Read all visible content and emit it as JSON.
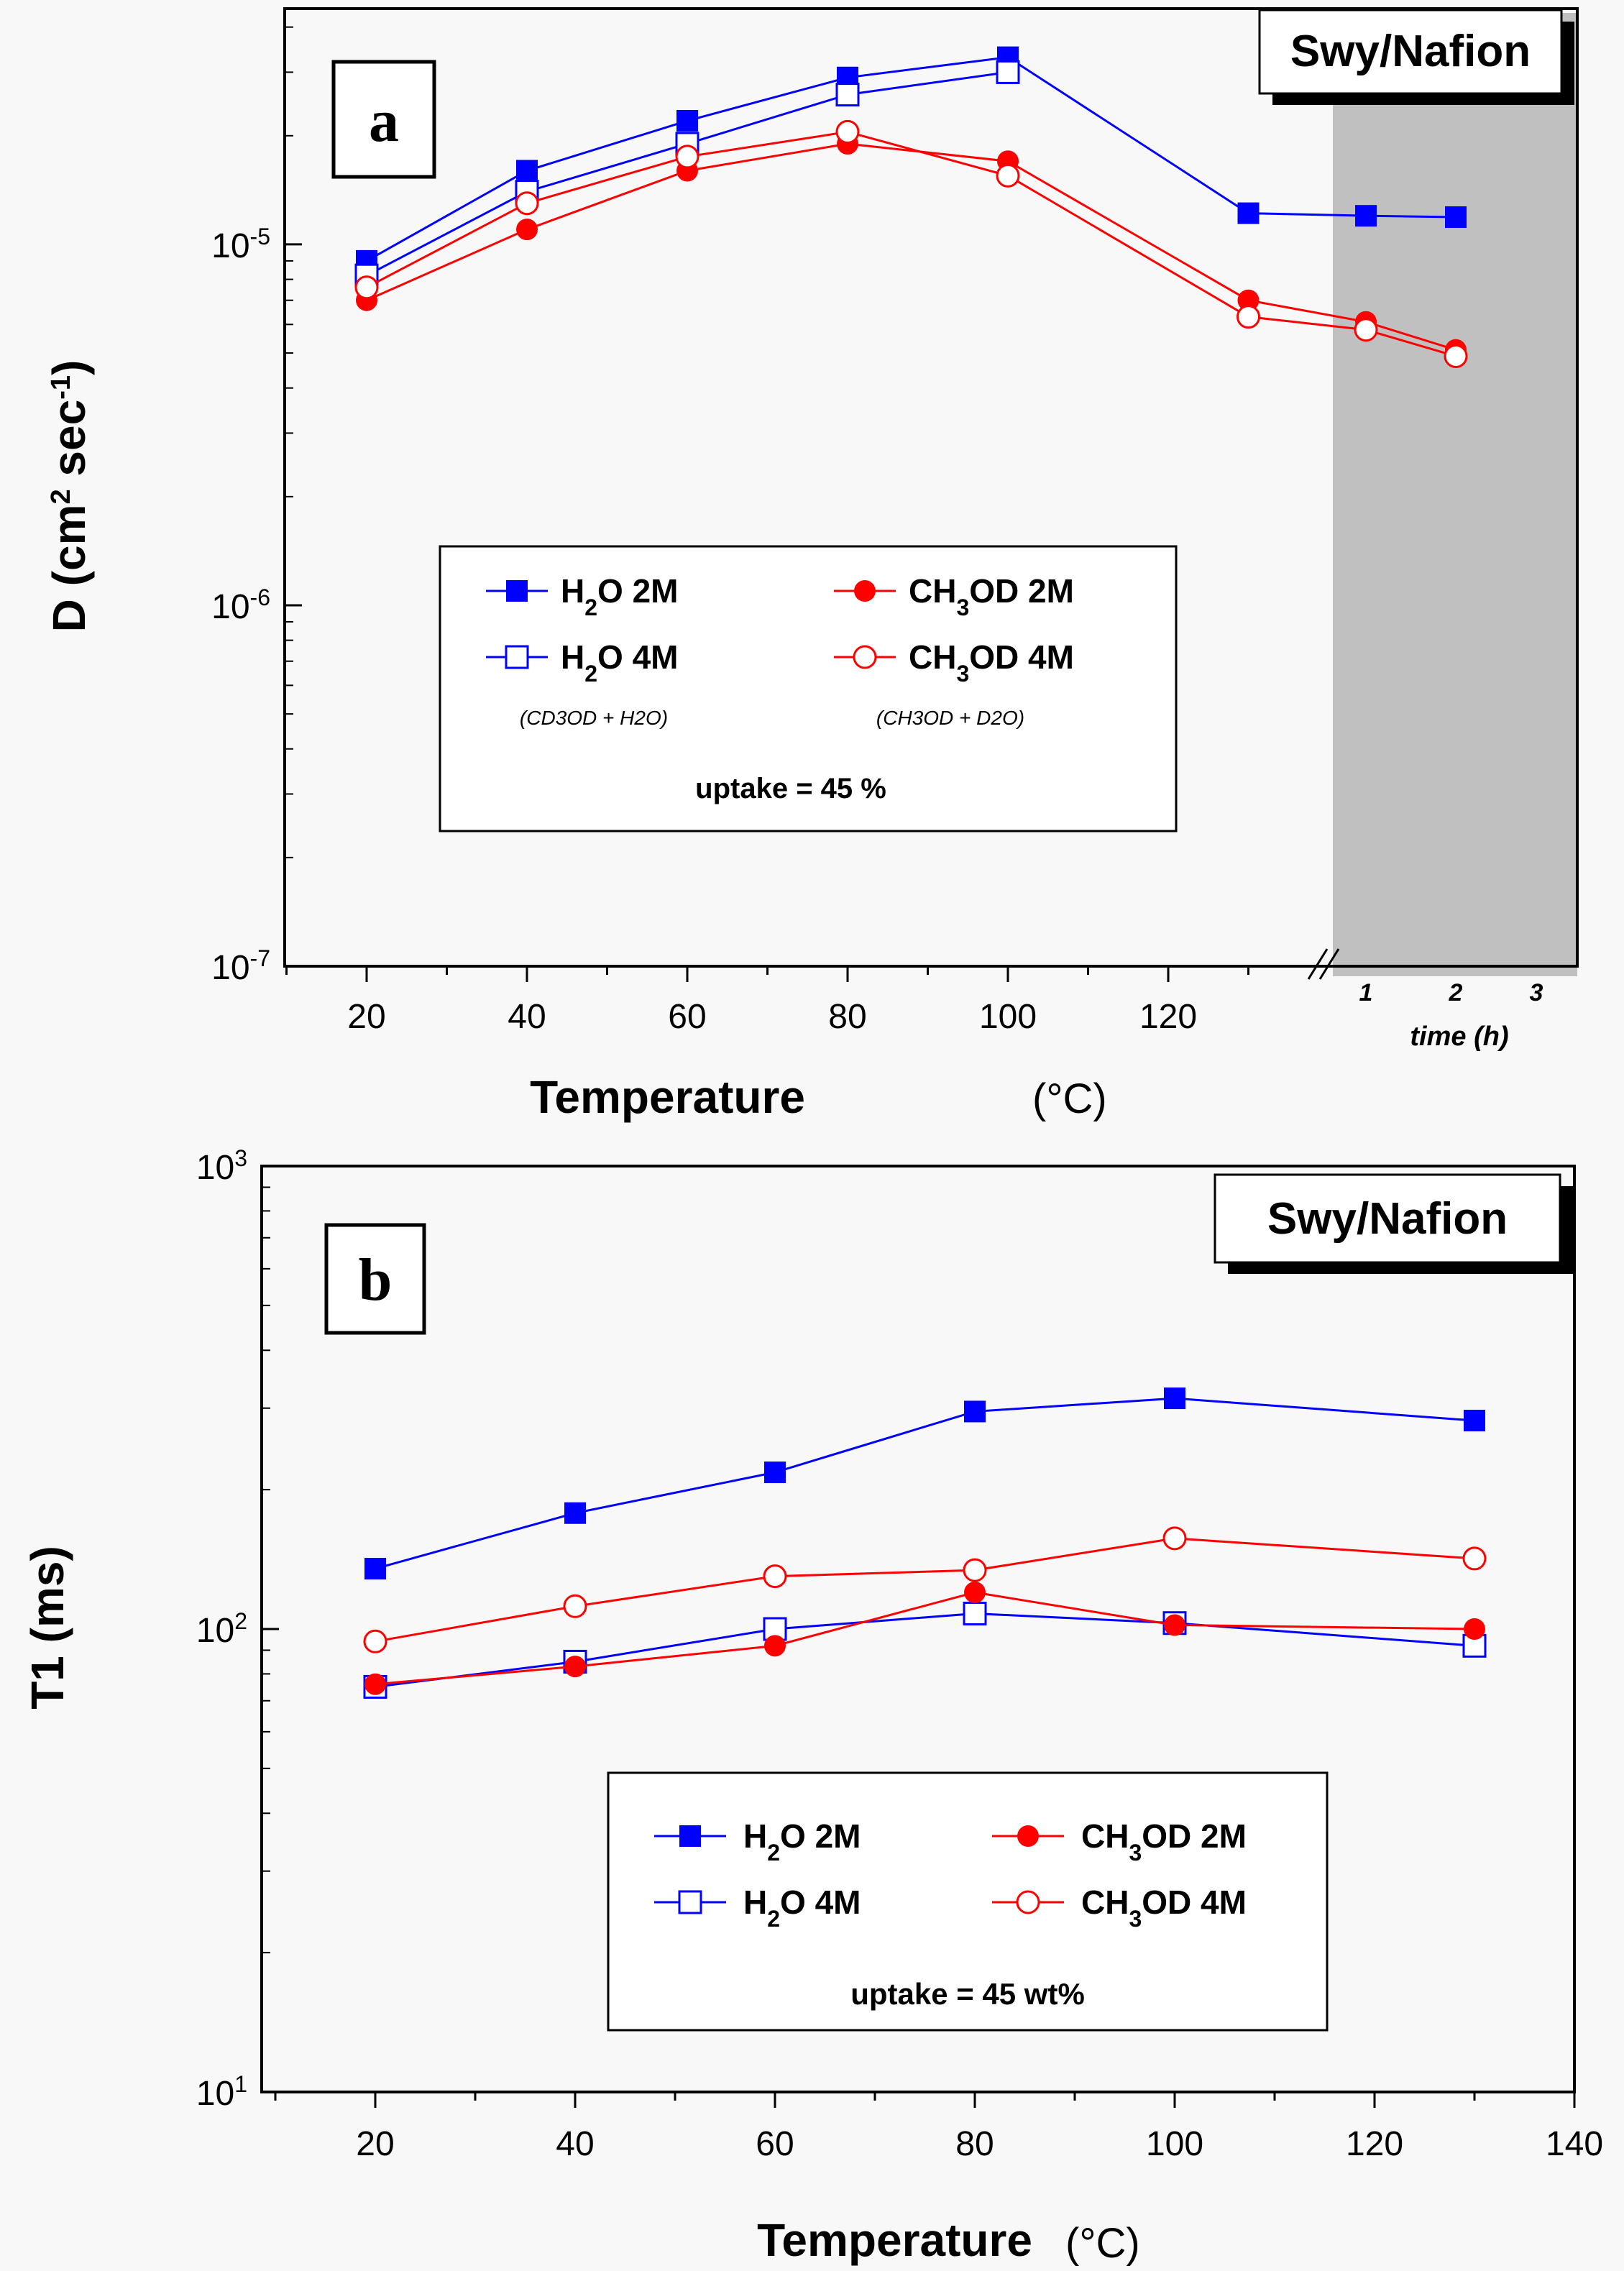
{
  "chart_data": [
    {
      "type": "line",
      "panel": "a",
      "title": "Swy/Nafion",
      "xlabel": "Temperature",
      "xlabel_unit": "(°C)",
      "ylabel": "D (cm2 sec-1)",
      "ylabel_parts": {
        "base": "D (cm",
        "sup1": "2",
        "mid": " sec",
        "sup2": "-1",
        "end": ")"
      },
      "yscale": "log",
      "ylim": [
        1e-07,
        4.5e-05
      ],
      "xlim": [
        10,
        136
      ],
      "x_ticks": [
        20,
        40,
        60,
        80,
        100,
        120
      ],
      "x_tick_labels": [
        "20",
        "40",
        "60",
        "80",
        "100",
        "120"
      ],
      "y_tick_labels": [
        {
          "value": 1e-07,
          "base": "10",
          "exp": "-7"
        },
        {
          "value": 1e-06,
          "base": "10",
          "exp": "-6"
        },
        {
          "value": 1e-05,
          "base": "10",
          "exp": "-5"
        }
      ],
      "time_axis": {
        "label": "time (h)",
        "ticks": [
          "1",
          "2",
          "3"
        ]
      },
      "shaded_region_color": "#c0c0c0",
      "series": [
        {
          "name": "H2O 2M",
          "color": "#0000ff",
          "marker": "square-filled",
          "x": [
            20,
            40,
            60,
            80,
            100,
            130,
            "t1",
            "t2"
          ],
          "values": [
            9e-06,
            1.6e-05,
            2.2e-05,
            2.9e-05,
            3.3e-05,
            1.22e-05,
            1.2e-05,
            1.19e-05
          ]
        },
        {
          "name": "H2O 4M",
          "color": "#0000ff",
          "marker": "square-open",
          "x": [
            20,
            40,
            60,
            80,
            100
          ],
          "values": [
            8.2e-06,
            1.4e-05,
            1.9e-05,
            2.6e-05,
            3e-05
          ]
        },
        {
          "name": "CH3OD 2M",
          "color": "#ff0000",
          "marker": "circle-filled",
          "x": [
            20,
            40,
            60,
            80,
            100,
            130,
            "t1",
            "t2"
          ],
          "values": [
            7e-06,
            1.1e-05,
            1.6e-05,
            1.9e-05,
            1.7e-05,
            7e-06,
            6.1e-06,
            5.1e-06
          ]
        },
        {
          "name": "CH3OD 4M",
          "color": "#ff0000",
          "marker": "circle-open",
          "x": [
            20,
            40,
            60,
            80,
            100,
            130,
            "t1",
            "t2"
          ],
          "values": [
            7.6e-06,
            1.3e-05,
            1.75e-05,
            2.05e-05,
            1.55e-05,
            6.3e-06,
            5.8e-06,
            4.9e-06
          ]
        }
      ],
      "legend": {
        "entries": [
          {
            "prefix": "H",
            "sub": "2",
            "suffix": "O  2M",
            "marker": "square-filled",
            "color": "#0000ff"
          },
          {
            "prefix": "CH",
            "sub": "3",
            "suffix": "OD 2M",
            "marker": "circle-filled",
            "color": "#ff0000"
          },
          {
            "prefix": "H",
            "sub": "2",
            "suffix": "O  4M",
            "marker": "square-open",
            "color": "#0000ff"
          },
          {
            "prefix": "CH",
            "sub": "3",
            "suffix": "OD 4M",
            "marker": "circle-open",
            "color": "#ff0000"
          }
        ],
        "notes": [
          "(CD3OD + H2O)",
          "(CH3OD + D2O)"
        ],
        "uptake": "uptake = 45 %"
      }
    },
    {
      "type": "line",
      "panel": "b",
      "title": "Swy/Nafion",
      "xlabel": "Temperature",
      "xlabel_unit": "(°C)",
      "ylabel": "T1 (ms)",
      "yscale": "log",
      "ylim": [
        10,
        1000
      ],
      "xlim": [
        10,
        140
      ],
      "x_ticks": [
        20,
        40,
        60,
        80,
        100,
        120,
        140
      ],
      "x_tick_labels": [
        "20",
        "40",
        "60",
        "80",
        "100",
        "120",
        "140"
      ],
      "y_tick_labels": [
        {
          "value": 10,
          "base": "10",
          "exp": "1"
        },
        {
          "value": 100,
          "base": "10",
          "exp": "2"
        },
        {
          "value": 1000,
          "base": "10",
          "exp": "3"
        }
      ],
      "series": [
        {
          "name": "H2O 2M",
          "color": "#0000ff",
          "marker": "square-filled",
          "x": [
            20,
            40,
            60,
            80,
            100,
            130
          ],
          "values": [
            135,
            178,
            218,
            295,
            315,
            282
          ]
        },
        {
          "name": "H2O 4M",
          "color": "#0000ff",
          "marker": "square-open",
          "x": [
            20,
            40,
            60,
            80,
            100,
            130
          ],
          "values": [
            75,
            85,
            100,
            108,
            103,
            92
          ]
        },
        {
          "name": "CH3OD 2M",
          "color": "#ff0000",
          "marker": "circle-filled",
          "x": [
            20,
            40,
            60,
            80,
            100,
            130
          ],
          "values": [
            76,
            83,
            92,
            120,
            102,
            100
          ]
        },
        {
          "name": "CH3OD 4M",
          "color": "#ff0000",
          "marker": "circle-open",
          "x": [
            20,
            40,
            60,
            80,
            100,
            130
          ],
          "values": [
            94,
            112,
            130,
            134,
            157,
            142
          ]
        }
      ],
      "legend": {
        "entries": [
          {
            "prefix": "H",
            "sub": "2",
            "suffix": "O   2M",
            "marker": "square-filled",
            "color": "#0000ff"
          },
          {
            "prefix": "CH",
            "sub": "3",
            "suffix": "OD 2M",
            "marker": "circle-filled",
            "color": "#ff0000"
          },
          {
            "prefix": "H",
            "sub": "2",
            "suffix": "O   4M",
            "marker": "square-open",
            "color": "#0000ff"
          },
          {
            "prefix": "CH",
            "sub": "3",
            "suffix": "OD 4M",
            "marker": "circle-open",
            "color": "#ff0000"
          }
        ],
        "uptake": "uptake = 45 wt%"
      }
    }
  ]
}
